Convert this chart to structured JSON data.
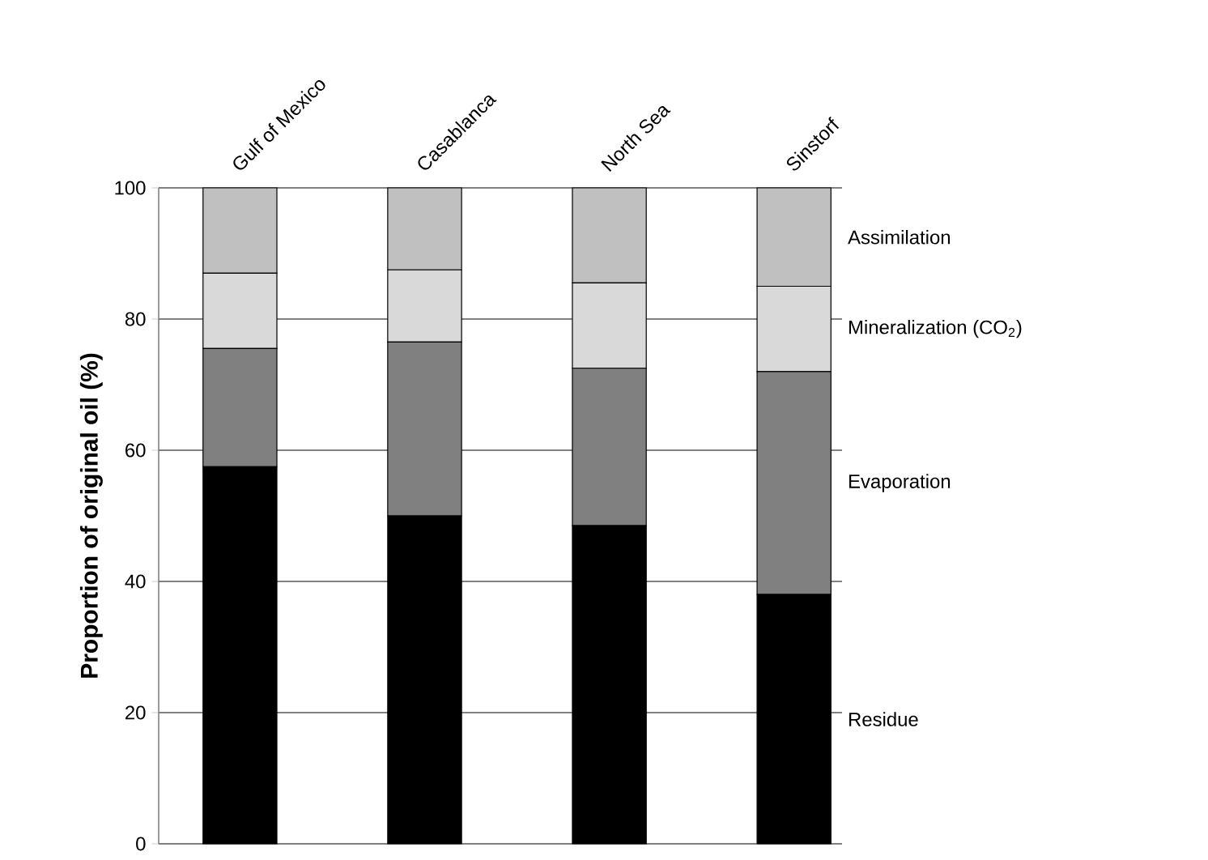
{
  "chart_data": {
    "type": "bar",
    "stacked": true,
    "ylabel": "Proportion of original oil (%)",
    "categories": [
      "Gulf of Mexico",
      "Casablanca",
      "North Sea",
      "Sinstorf"
    ],
    "series": [
      {
        "name": "Residue",
        "color": "#000000",
        "values": [
          57.5,
          50,
          48.5,
          38
        ]
      },
      {
        "name": "Evaporation",
        "color": "#808080",
        "values": [
          18,
          26.5,
          24,
          34
        ]
      },
      {
        "name": "Mineralization (CO$_{2}$)",
        "color": "#d9d9d9",
        "values": [
          11.5,
          11,
          13,
          13
        ]
      },
      {
        "name": "Assimilation",
        "color": "#c0c0c0",
        "values": [
          13,
          12.5,
          14.5,
          15
        ]
      }
    ],
    "ylim": [
      0,
      100
    ],
    "yticks": [
      0,
      20,
      40,
      60,
      80,
      100
    ],
    "grid": "y"
  }
}
